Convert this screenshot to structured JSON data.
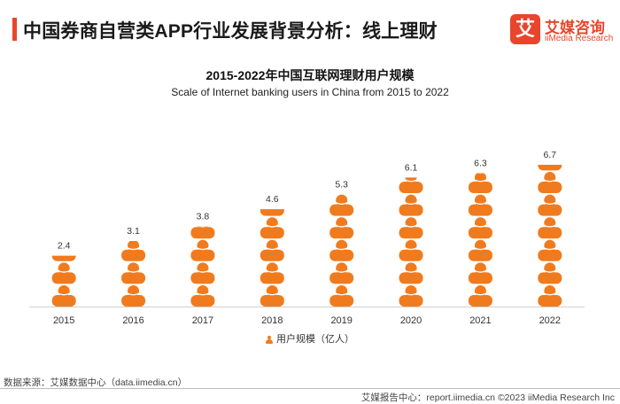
{
  "header": {
    "title": "中国券商自营类APP行业发展背景分析：线上理财",
    "accent_color": "#e8452c"
  },
  "logo": {
    "mark": "艾",
    "name_cn": "艾媒咨询",
    "name_en": "iiMedia Research",
    "color": "#e8452c"
  },
  "chart_data": {
    "type": "bar",
    "title": "2015-2022年中国互联网理财用户规模",
    "subtitle": "Scale of Internet banking users in China from 2015 to 2022",
    "categories": [
      "2015",
      "2016",
      "2017",
      "2018",
      "2019",
      "2020",
      "2021",
      "2022"
    ],
    "series": [
      {
        "name": "用户规模（亿人）",
        "values": [
          2.4,
          3.1,
          3.8,
          4.6,
          5.3,
          6.1,
          6.3,
          6.7
        ]
      }
    ],
    "labels": [
      "2.4",
      "3.1",
      "3.8",
      "4.6",
      "5.3",
      "6.1",
      "6.3",
      "6.7"
    ],
    "xlabel": "",
    "ylabel": "",
    "ylim": [
      0,
      7.5
    ],
    "grid": false,
    "legend": "bottom-center",
    "bar_color": "#f07b1e",
    "bar_style": "person-icon pictograph"
  },
  "legend": {
    "label": "用户规模（亿人）"
  },
  "footer": {
    "source": "数据来源：艾媒数据中心（data.iimedia.cn）",
    "right": "艾媒报告中心：report.iimedia.cn  ©2023  iiMedia Research  Inc"
  }
}
